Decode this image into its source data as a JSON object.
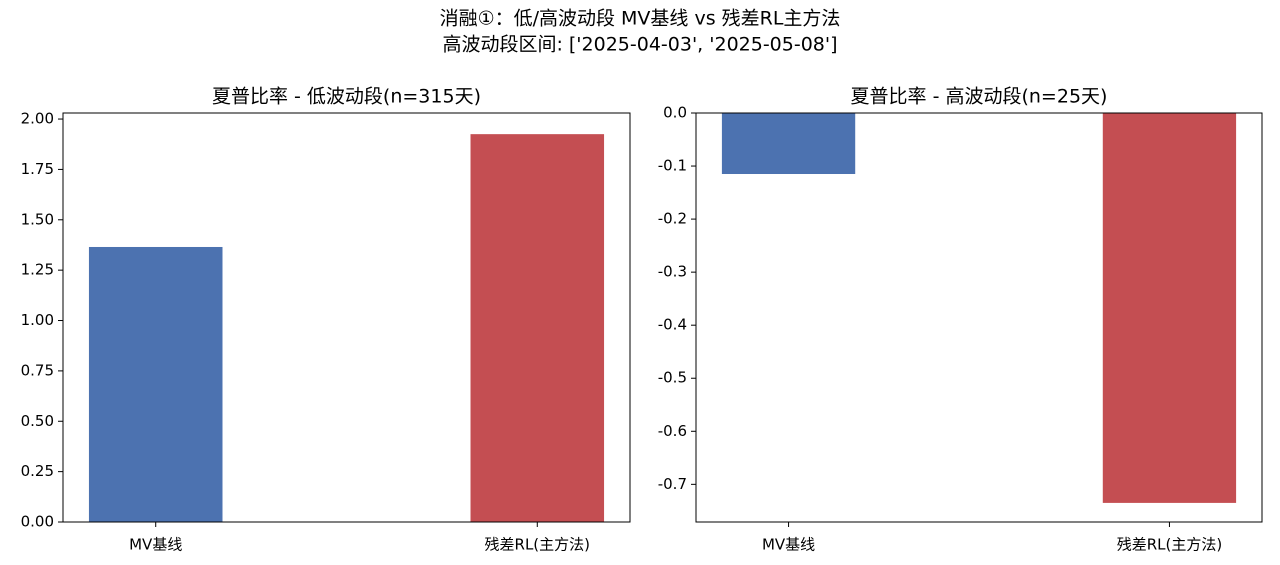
{
  "title": "消融①：低/高波动段 MV基线 vs 残差RL主方法",
  "subtitle": "高波动段区间: ['2025-04-03', '2025-05-08']",
  "chart_data": [
    {
      "type": "bar",
      "title": "夏普比率 - 低波动段(n=315天)",
      "categories": [
        "MV基线",
        "残差RL(主方法)"
      ],
      "values": [
        1.365,
        1.925
      ],
      "colors": [
        "#4c72b0",
        "#c44e52"
      ],
      "ylim": [
        0,
        2.03
      ],
      "yticks": [
        {
          "value": 0,
          "label": "0.00"
        },
        {
          "value": 0.25,
          "label": "0.25"
        },
        {
          "value": 0.5,
          "label": "0.50"
        },
        {
          "value": 0.75,
          "label": "0.75"
        },
        {
          "value": 1,
          "label": "1.00"
        },
        {
          "value": 1.25,
          "label": "1.25"
        },
        {
          "value": 1.5,
          "label": "1.50"
        },
        {
          "value": 1.75,
          "label": "1.75"
        },
        {
          "value": 2,
          "label": "2.00"
        }
      ]
    },
    {
      "type": "bar",
      "title": "夏普比率 - 高波动段(n=25天)",
      "categories": [
        "MV基线",
        "残差RL(主方法)"
      ],
      "values": [
        -0.115,
        -0.735
      ],
      "colors": [
        "#4c72b0",
        "#c44e52"
      ],
      "ylim": [
        -0.771,
        0
      ],
      "yticks": [
        {
          "value": 0,
          "label": "0.0"
        },
        -0.1,
        -0.2,
        -0.3,
        -0.4,
        -0.5,
        -0.6,
        -0.7
      ]
    }
  ]
}
